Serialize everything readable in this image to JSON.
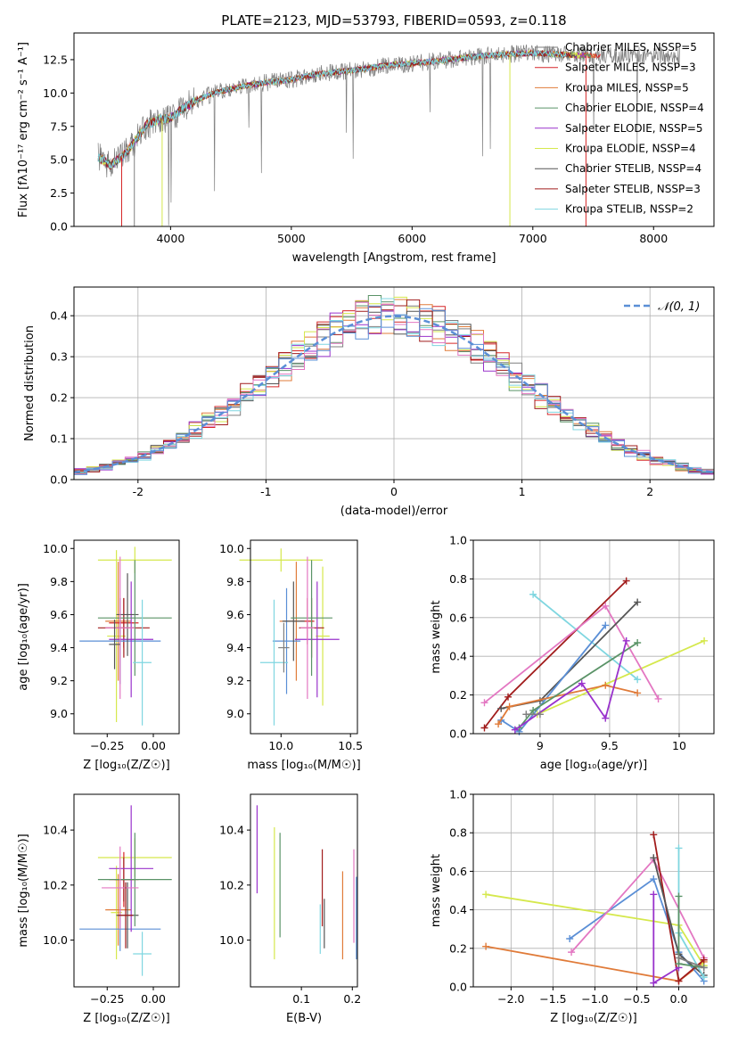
{
  "chart_data": [
    {
      "id": "spectrum",
      "type": "line",
      "title": "PLATE=2123, MJD=53793, FIBERID=0593, z=0.118",
      "xlabel": "wavelength [Angstrom, rest frame]",
      "ylabel": "Flux [fλ10⁻¹⁷ erg cm⁻² s⁻¹ A⁻¹]",
      "xlim": [
        3200,
        8500
      ],
      "ylim": [
        0,
        14.5
      ],
      "xticks": [
        4000,
        5000,
        6000,
        7000,
        8000
      ],
      "yticks": [
        0.0,
        2.5,
        5.0,
        7.5,
        10.0,
        12.5
      ],
      "legend_position": "right",
      "grid": false,
      "data_flux": {
        "x": [
          3400,
          3500,
          3600,
          3700,
          3800,
          3900,
          4000,
          4100,
          4200,
          4300,
          4400,
          4600,
          4800,
          5000,
          5200,
          5400,
          5600,
          5800,
          6000,
          6200,
          6400,
          6600,
          6800,
          7000,
          7200,
          7400,
          7600,
          7800,
          8000,
          8200
        ],
        "y": [
          5.2,
          4.6,
          5.2,
          6.3,
          7.6,
          8.0,
          8.1,
          8.8,
          9.4,
          9.8,
          10.1,
          10.5,
          10.8,
          11.0,
          11.4,
          11.6,
          11.8,
          12.1,
          12.2,
          12.4,
          12.6,
          12.8,
          12.9,
          13.0,
          12.9,
          12.8,
          12.8,
          12.8,
          12.8,
          12.7
        ]
      },
      "series": [
        {
          "name": "Chabrier MILES, N_SSP=5",
          "color": "#7f7f7f"
        },
        {
          "name": "Salpeter MILES, N_SSP=3",
          "color": "#d62728"
        },
        {
          "name": "Kroupa MILES, N_SSP=5",
          "color": "#e07b39"
        },
        {
          "name": "Chabrier ELODIE, N_SSP=4",
          "color": "#5a9367"
        },
        {
          "name": "Salpeter ELODIE, N_SSP=5",
          "color": "#9932cc"
        },
        {
          "name": "Kroupa ELODIE, N_SSP=4",
          "color": "#d5e84c"
        },
        {
          "name": "Chabrier STELIB, N_SSP=4",
          "color": "#555555"
        },
        {
          "name": "Salpeter STELIB, N_SSP=3",
          "color": "#a11c1c"
        },
        {
          "name": "Kroupa STELIB, N_SSP=2",
          "color": "#7fd6e0"
        }
      ]
    },
    {
      "id": "residuals",
      "type": "histogram",
      "xlabel": "(data-model)/error",
      "ylabel": "Normed distribution",
      "xlim": [
        -2.5,
        2.5
      ],
      "ylim": [
        0,
        0.47
      ],
      "xticks": [
        -2,
        -1,
        0,
        1,
        2
      ],
      "yticks": [
        0.0,
        0.1,
        0.2,
        0.3,
        0.4
      ],
      "grid": true,
      "legend": "𝒩(0, 1)",
      "legend_position": "top-right",
      "gaussian_color": "#5b8fd6",
      "bin_width": 0.1
    },
    {
      "id": "age-vs-Z",
      "type": "scatter",
      "xlabel": "Z [log₁₀(Z/Z☉)]",
      "ylabel": "age  [log₁₀(age/yr)]",
      "xlim": [
        -0.43,
        0.14
      ],
      "ylim": [
        8.88,
        10.05
      ],
      "xticks": [
        -0.25,
        0.0
      ],
      "xticklabels": [
        "−0.25",
        "0.00"
      ],
      "yticks": [
        9.0,
        9.2,
        9.4,
        9.6,
        9.8,
        10.0
      ],
      "grid": false,
      "points": [
        {
          "x": -0.2,
          "y": 9.47,
          "xerr": 0.05,
          "yerr": 0.52,
          "color": "#d5e84c"
        },
        {
          "x": -0.1,
          "y": 9.93,
          "xerr": 0.2,
          "yerr": 0.08,
          "color": "#d5e84c"
        },
        {
          "x": -0.19,
          "y": 9.56,
          "xerr": 0.07,
          "yerr": 0.36,
          "color": "#e07b39"
        },
        {
          "x": -0.16,
          "y": 9.55,
          "xerr": 0.08,
          "yerr": 0.15,
          "color": "#d62728"
        },
        {
          "x": -0.16,
          "y": 9.52,
          "xerr": 0.14,
          "yerr": 0.18,
          "color": "#a11c1c"
        },
        {
          "x": -0.18,
          "y": 9.44,
          "xerr": 0.22,
          "yerr": 0.26,
          "color": "#5b8fd6"
        },
        {
          "x": -0.12,
          "y": 9.45,
          "xerr": 0.12,
          "yerr": 0.35,
          "color": "#9932cc"
        },
        {
          "x": -0.14,
          "y": 9.6,
          "xerr": 0.06,
          "yerr": 0.25,
          "color": "#555555"
        },
        {
          "x": -0.1,
          "y": 9.58,
          "xerr": 0.2,
          "yerr": 0.35,
          "color": "#5a9367"
        },
        {
          "x": -0.18,
          "y": 9.52,
          "xerr": 0.08,
          "yerr": 0.43,
          "color": "#e377c2"
        },
        {
          "x": -0.06,
          "y": 9.31,
          "xerr": 0.05,
          "yerr": 0.38,
          "color": "#7fd6e0"
        },
        {
          "x": -0.21,
          "y": 9.42,
          "xerr": 0.03,
          "yerr": 0.15,
          "color": "#555555"
        }
      ]
    },
    {
      "id": "age-vs-mass",
      "type": "scatter",
      "xlabel": "mass [log₁₀(M/M☉)]",
      "ylabel": "",
      "xlim": [
        9.78,
        10.55
      ],
      "ylim": [
        8.88,
        10.05
      ],
      "xticks": [
        10.0,
        10.5
      ],
      "xticklabels": [
        "10.0",
        "10.5"
      ],
      "yticks": [
        9.0,
        9.2,
        9.4,
        9.6,
        9.8,
        10.0
      ],
      "grid": false,
      "points": [
        {
          "x": 10.3,
          "y": 9.47,
          "xerr": 0.05,
          "yerr": 0.42,
          "color": "#d5e84c"
        },
        {
          "x": 10.0,
          "y": 9.93,
          "xerr": 0.3,
          "yerr": 0.07,
          "color": "#d5e84c"
        },
        {
          "x": 10.11,
          "y": 9.56,
          "xerr": 0.12,
          "yerr": 0.36,
          "color": "#e07b39"
        },
        {
          "x": 10.19,
          "y": 9.56,
          "xerr": 0.05,
          "yerr": 0.14,
          "color": "#d62728"
        },
        {
          "x": 10.22,
          "y": 9.52,
          "xerr": 0.09,
          "yerr": 0.18,
          "color": "#a11c1c"
        },
        {
          "x": 10.04,
          "y": 9.44,
          "xerr": 0.1,
          "yerr": 0.32,
          "color": "#5b8fd6"
        },
        {
          "x": 10.26,
          "y": 9.45,
          "xerr": 0.16,
          "yerr": 0.35,
          "color": "#9932cc"
        },
        {
          "x": 10.09,
          "y": 9.56,
          "xerr": 0.08,
          "yerr": 0.24,
          "color": "#555555"
        },
        {
          "x": 10.22,
          "y": 9.58,
          "xerr": 0.15,
          "yerr": 0.35,
          "color": "#5a9367"
        },
        {
          "x": 10.19,
          "y": 9.52,
          "xerr": 0.05,
          "yerr": 0.43,
          "color": "#e377c2"
        },
        {
          "x": 9.95,
          "y": 9.31,
          "xerr": 0.1,
          "yerr": 0.38,
          "color": "#7fd6e0"
        },
        {
          "x": 10.02,
          "y": 9.4,
          "xerr": 0.04,
          "yerr": 0.15,
          "color": "#7f7f7f"
        }
      ]
    },
    {
      "id": "weight-vs-age",
      "type": "line",
      "xlabel": "age  [log₁₀(age/yr)]",
      "ylabel": "mass weight",
      "xlim": [
        8.52,
        10.25
      ],
      "ylim": [
        0,
        1.0
      ],
      "xticks": [
        9.0,
        9.5,
        10.0
      ],
      "yticks": [
        0.0,
        0.2,
        0.4,
        0.6,
        0.8,
        1.0
      ],
      "grid": true,
      "series": [
        {
          "color": "#7fd6e0",
          "points": [
            [
              8.95,
              0.72
            ],
            [
              9.7,
              0.28
            ]
          ]
        },
        {
          "color": "#d5e84c",
          "points": [
            [
              8.98,
              0.1
            ],
            [
              10.18,
              0.48
            ]
          ]
        },
        {
          "color": "#a11c1c",
          "points": [
            [
              8.6,
              0.03
            ],
            [
              8.77,
              0.19
            ],
            [
              9.62,
              0.79
            ]
          ]
        },
        {
          "color": "#e377c2",
          "points": [
            [
              8.6,
              0.16
            ],
            [
              9.47,
              0.66
            ],
            [
              9.85,
              0.18
            ]
          ]
        },
        {
          "color": "#555555",
          "points": [
            [
              8.72,
              0.13
            ],
            [
              9.0,
              0.17
            ],
            [
              9.7,
              0.68
            ]
          ]
        },
        {
          "color": "#5b8fd6",
          "points": [
            [
              8.72,
              0.07
            ],
            [
              8.85,
              0.01
            ],
            [
              9.47,
              0.56
            ]
          ]
        },
        {
          "color": "#e07b39",
          "points": [
            [
              8.7,
              0.05
            ],
            [
              8.78,
              0.14
            ],
            [
              9.47,
              0.25
            ],
            [
              9.7,
              0.21
            ]
          ]
        },
        {
          "color": "#5a9367",
          "points": [
            [
              8.85,
              0.03
            ],
            [
              8.95,
              0.12
            ],
            [
              9.7,
              0.47
            ]
          ]
        },
        {
          "color": "#9932cc",
          "points": [
            [
              8.82,
              0.02
            ],
            [
              9.3,
              0.26
            ],
            [
              9.47,
              0.08
            ],
            [
              9.62,
              0.48
            ]
          ]
        },
        {
          "color": "#7f7f7f",
          "points": [
            [
              8.9,
              0.1
            ],
            [
              9.0,
              0.1
            ]
          ]
        }
      ]
    },
    {
      "id": "mass-vs-Z",
      "type": "scatter",
      "xlabel": "Z [log₁₀(Z/Z☉)]",
      "ylabel": "mass [log₁₀(M/M☉)]",
      "xlim": [
        -0.43,
        0.14
      ],
      "ylim": [
        9.83,
        10.53
      ],
      "xticks": [
        -0.25,
        0.0
      ],
      "xticklabels": [
        "−0.25",
        "0.00"
      ],
      "yticks": [
        10.0,
        10.2,
        10.4
      ],
      "grid": false,
      "points": [
        {
          "x": -0.2,
          "y": 10.1,
          "xerr": 0.03,
          "yerr": 0.17,
          "color": "#d5e84c"
        },
        {
          "x": -0.1,
          "y": 10.3,
          "xerr": 0.2,
          "yerr": 0.07,
          "color": "#d5e84c"
        },
        {
          "x": -0.19,
          "y": 10.11,
          "xerr": 0.07,
          "yerr": 0.13,
          "color": "#e07b39"
        },
        {
          "x": -0.16,
          "y": 10.22,
          "xerr": 0.08,
          "yerr": 0.1,
          "color": "#d62728"
        },
        {
          "x": -0.16,
          "y": 10.22,
          "xerr": 0.05,
          "yerr": 0.08,
          "color": "#a11c1c"
        },
        {
          "x": -0.18,
          "y": 10.04,
          "xerr": 0.22,
          "yerr": 0.08,
          "color": "#5b8fd6"
        },
        {
          "x": -0.12,
          "y": 10.26,
          "xerr": 0.12,
          "yerr": 0.23,
          "color": "#9932cc"
        },
        {
          "x": -0.14,
          "y": 10.09,
          "xerr": 0.06,
          "yerr": 0.12,
          "color": "#555555"
        },
        {
          "x": -0.1,
          "y": 10.22,
          "xerr": 0.2,
          "yerr": 0.17,
          "color": "#5a9367"
        },
        {
          "x": -0.18,
          "y": 10.19,
          "xerr": 0.1,
          "yerr": 0.15,
          "color": "#e377c2"
        },
        {
          "x": -0.06,
          "y": 9.95,
          "xerr": 0.05,
          "yerr": 0.08,
          "color": "#7fd6e0"
        },
        {
          "x": -0.15,
          "y": 10.09,
          "xerr": 0.04,
          "yerr": 0.12,
          "color": "#a11c1c"
        }
      ]
    },
    {
      "id": "mass-vs-ebv",
      "type": "scatter",
      "xlabel": "E(B-V)",
      "ylabel": "",
      "xlim": [
        0.0,
        0.21
      ],
      "ylim": [
        9.83,
        10.53
      ],
      "xticks": [
        0.1,
        0.2
      ],
      "xticklabels": [
        "0.1",
        "0.2"
      ],
      "yticks": [
        10.0,
        10.2,
        10.4
      ],
      "grid": false,
      "points": [
        {
          "x": 0.013,
          "y": 10.33,
          "yerr": 0.16,
          "color": "#9932cc"
        },
        {
          "x": 0.047,
          "y": 10.17,
          "yerr": 0.24,
          "color": "#d5e84c"
        },
        {
          "x": 0.058,
          "y": 10.2,
          "yerr": 0.19,
          "color": "#5a9367"
        },
        {
          "x": 0.137,
          "y": 10.04,
          "yerr": 0.09,
          "color": "#7fd6e0"
        },
        {
          "x": 0.141,
          "y": 10.19,
          "yerr": 0.14,
          "color": "#a11c1c"
        },
        {
          "x": 0.145,
          "y": 10.06,
          "yerr": 0.09,
          "color": "#555555"
        },
        {
          "x": 0.181,
          "y": 10.09,
          "yerr": 0.16,
          "color": "#e07b39"
        },
        {
          "x": 0.203,
          "y": 10.16,
          "yerr": 0.17,
          "color": "#e377c2"
        },
        {
          "x": 0.208,
          "y": 10.08,
          "yerr": 0.15,
          "color": "#5b8fd6"
        }
      ]
    },
    {
      "id": "weight-vs-Z",
      "type": "line",
      "xlabel": "Z [log₁₀(Z/Z☉)]",
      "ylabel": "mass weight",
      "xlim": [
        -2.45,
        0.42
      ],
      "ylim": [
        0,
        1.0
      ],
      "xticks": [
        -2.0,
        -1.5,
        -1.0,
        -0.5,
        0.0
      ],
      "xticklabels": [
        "−2.0",
        "−1.5",
        "−1.0",
        "−0.5",
        "0.0"
      ],
      "yticks": [
        0.0,
        0.2,
        0.4,
        0.6,
        0.8,
        1.0
      ],
      "grid": true,
      "series": [
        {
          "color": "#e07b39",
          "points": [
            [
              -2.3,
              0.21
            ],
            [
              0.0,
              0.03
            ],
            [
              0.3,
              0.13
            ]
          ]
        },
        {
          "color": "#d5e84c",
          "points": [
            [
              -2.3,
              0.48
            ],
            [
              0.0,
              0.32
            ],
            [
              0.3,
              0.11
            ]
          ]
        },
        {
          "color": "#5b8fd6",
          "points": [
            [
              -1.3,
              0.25
            ],
            [
              -0.3,
              0.56
            ],
            [
              0.0,
              0.18
            ],
            [
              0.3,
              0.03
            ]
          ]
        },
        {
          "color": "#e377c2",
          "points": [
            [
              -1.28,
              0.18
            ],
            [
              -0.3,
              0.66
            ],
            [
              0.3,
              0.15
            ]
          ]
        },
        {
          "color": "#a11c1c",
          "points": [
            [
              -0.3,
              0.79
            ],
            [
              0.0,
              0.03
            ],
            [
              0.3,
              0.14
            ]
          ]
        },
        {
          "color": "#555555",
          "points": [
            [
              -0.3,
              0.67
            ],
            [
              0.0,
              0.17
            ],
            [
              0.3,
              0.06
            ]
          ]
        },
        {
          "color": "#7fd6e0",
          "points": [
            [
              0.0,
              0.72
            ],
            [
              0.0,
              0.28
            ],
            [
              0.3,
              0.05
            ]
          ]
        },
        {
          "color": "#9932cc",
          "points": [
            [
              -0.3,
              0.48
            ],
            [
              -0.3,
              0.02
            ],
            [
              0.0,
              0.1
            ]
          ]
        },
        {
          "color": "#5a9367",
          "points": [
            [
              0.0,
              0.47
            ],
            [
              0.0,
              0.12
            ],
            [
              0.3,
              0.1
            ]
          ]
        },
        {
          "color": "#7f7f7f",
          "points": [
            [
              0.0,
              0.15
            ],
            [
              0.3,
              0.1
            ]
          ]
        }
      ]
    }
  ]
}
